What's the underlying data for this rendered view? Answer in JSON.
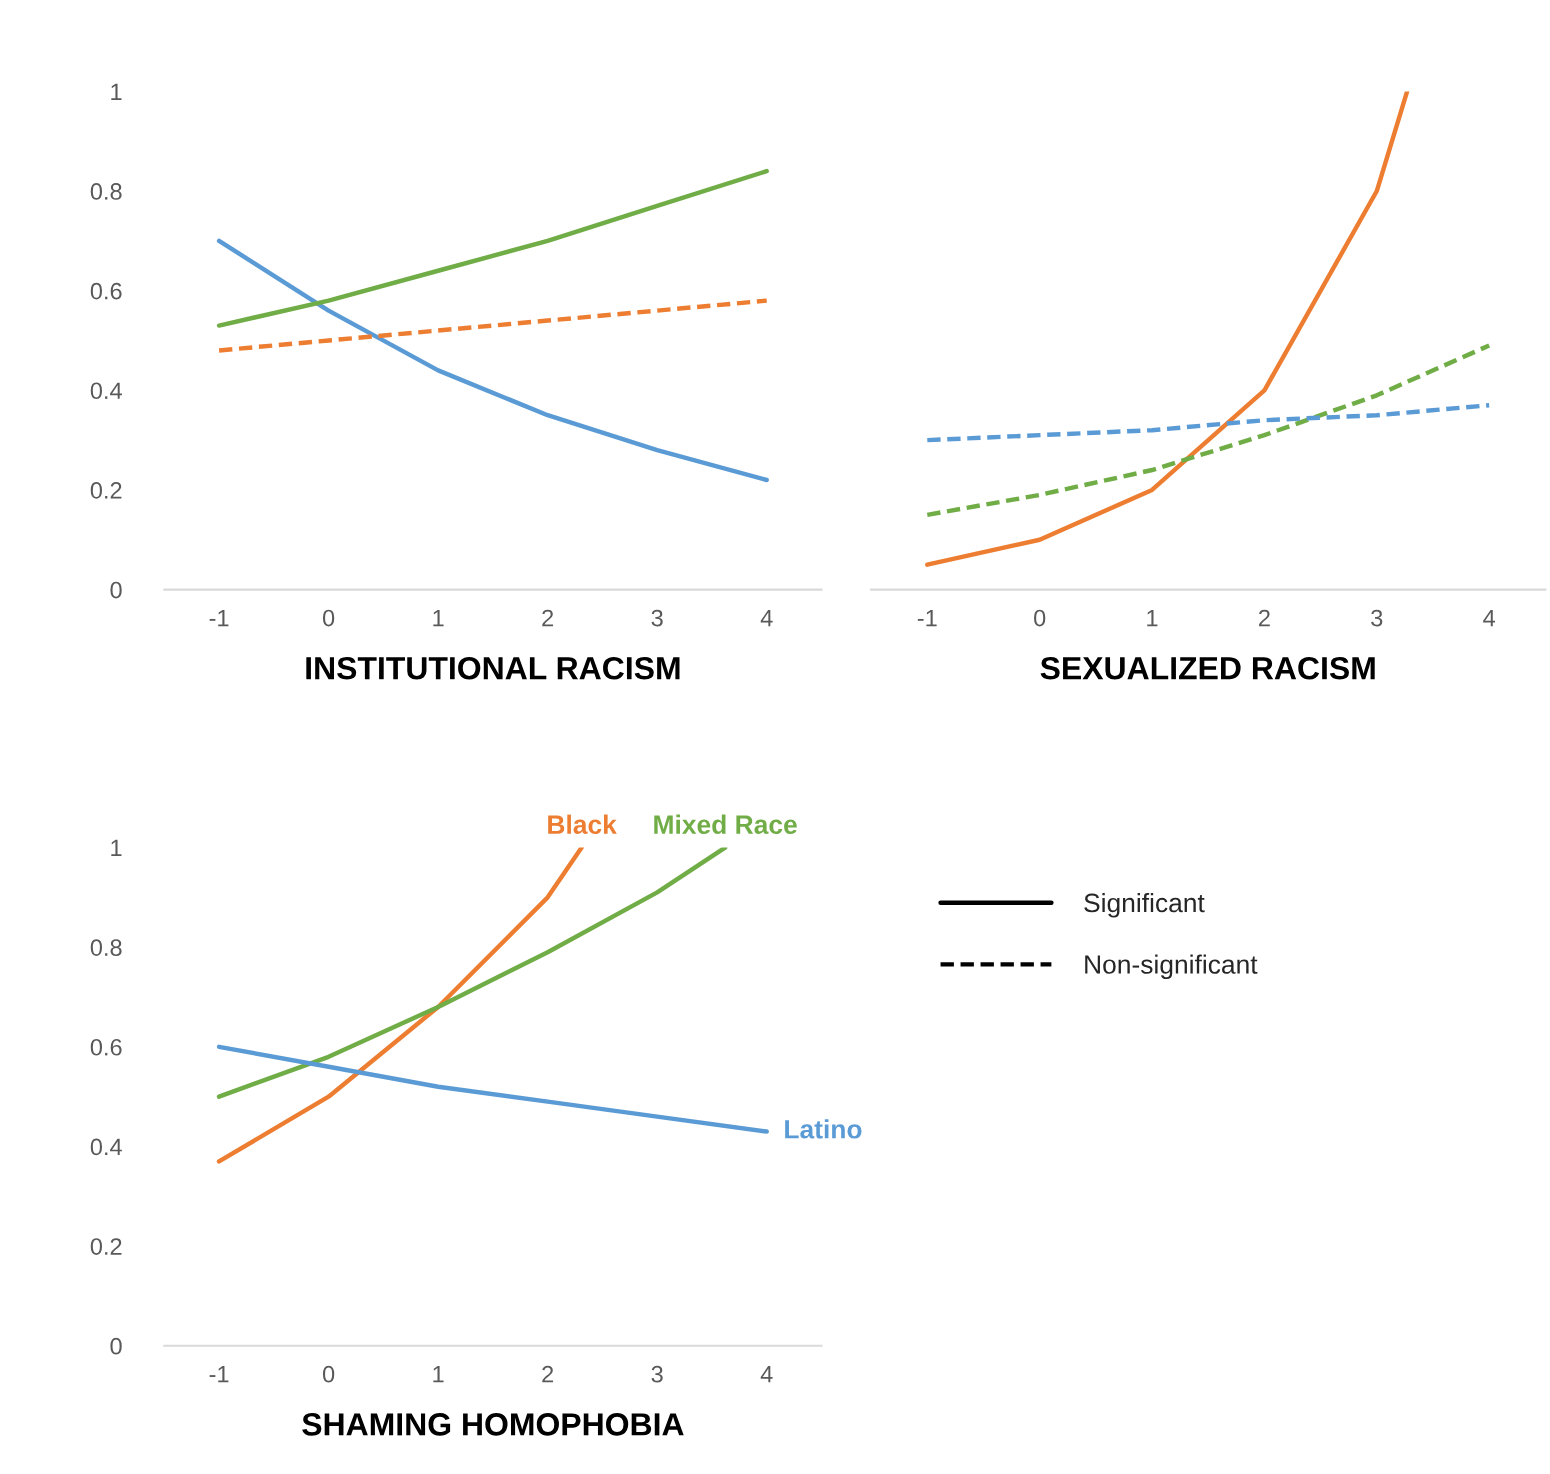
{
  "chart_data": [
    {
      "type": "line",
      "xlabel": "INSTITUTIONAL RACISM",
      "xlim": [
        -1.5,
        4.5
      ],
      "ylim": [
        0,
        1
      ],
      "xticks": [
        -1,
        0,
        1,
        2,
        3,
        4
      ],
      "yticks": [
        0,
        0.2,
        0.4,
        0.6,
        0.8,
        1
      ],
      "x": [
        -1,
        0,
        1,
        2,
        3,
        4
      ],
      "grid": false,
      "legend": false,
      "series": [
        {
          "color": "#5b9bd5",
          "line_style": "solid",
          "values": [
            0.7,
            0.56,
            0.44,
            0.35,
            0.28,
            0.22
          ]
        },
        {
          "color": "#70ad47",
          "line_style": "solid",
          "values": [
            0.53,
            0.58,
            0.64,
            0.7,
            0.77,
            0.84
          ]
        },
        {
          "color": "#ed7d31",
          "line_style": "dashed",
          "values": [
            0.48,
            0.5,
            0.52,
            0.54,
            0.56,
            0.58
          ]
        }
      ]
    },
    {
      "type": "line",
      "xlabel": "SEXUALIZED RACISM",
      "xlim": [
        -1.5,
        4.5
      ],
      "ylim": [
        0,
        1
      ],
      "xticks": [
        -1,
        0,
        1,
        2,
        3,
        4
      ],
      "tick_labels": "x",
      "x": [
        -1,
        0,
        1,
        2,
        3,
        4
      ],
      "grid": false,
      "legend": false,
      "series": [
        {
          "color": "#ed7d31",
          "line_style": "solid",
          "x": [
            -1,
            0,
            1,
            2,
            3,
            3.27
          ],
          "values": [
            0.05,
            0.1,
            0.2,
            0.4,
            0.8,
            1.0
          ]
        },
        {
          "color": "#70ad47",
          "line_style": "dashed",
          "values": [
            0.15,
            0.19,
            0.24,
            0.31,
            0.39,
            0.49
          ]
        },
        {
          "color": "#5b9bd5",
          "line_style": "dashed",
          "values": [
            0.3,
            0.31,
            0.32,
            0.34,
            0.35,
            0.37
          ]
        }
      ]
    },
    {
      "type": "line",
      "xlabel": "SHAMING HOMOPHOBIA",
      "xlim": [
        -1.5,
        4.5
      ],
      "ylim": [
        0,
        1
      ],
      "xticks": [
        -1,
        0,
        1,
        2,
        3,
        4
      ],
      "yticks": [
        0,
        0.2,
        0.4,
        0.6,
        0.8,
        1
      ],
      "x": [
        -1,
        0,
        1,
        2,
        3,
        4
      ],
      "grid": false,
      "legend": false,
      "series": [
        {
          "name": "Black",
          "color": "#ed7d31",
          "line_style": "solid",
          "x": [
            -1,
            0,
            1,
            2,
            2.31
          ],
          "values": [
            0.37,
            0.5,
            0.68,
            0.9,
            1.0
          ]
        },
        {
          "name": "Mixed Race",
          "color": "#70ad47",
          "line_style": "solid",
          "x": [
            -1,
            0,
            1,
            2,
            3,
            3.62
          ],
          "values": [
            0.5,
            0.58,
            0.68,
            0.79,
            0.91,
            1.0
          ]
        },
        {
          "name": "Latino",
          "color": "#5b9bd5",
          "line_style": "solid",
          "values": [
            0.6,
            0.56,
            0.52,
            0.49,
            0.46,
            0.43
          ]
        }
      ]
    },
    {
      "type": "other",
      "series": [
        {
          "name": "Significant",
          "color": "#000000",
          "line_style": "solid"
        },
        {
          "name": "Non-significant",
          "color": "#000000",
          "line_style": "dashed"
        }
      ]
    }
  ]
}
